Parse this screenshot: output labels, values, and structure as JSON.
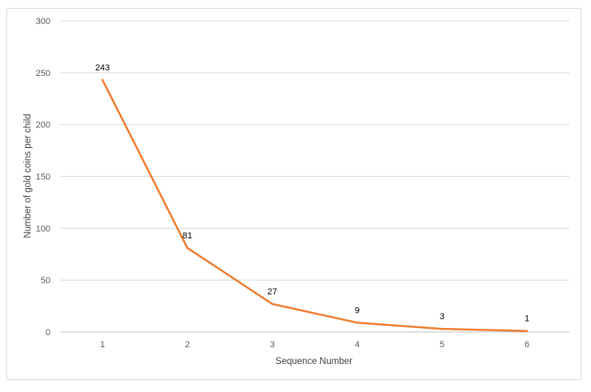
{
  "chart_data": {
    "type": "line",
    "categories": [
      "1",
      "2",
      "3",
      "4",
      "5",
      "6"
    ],
    "series": [
      {
        "values": [
          243,
          81,
          27,
          9,
          3,
          1
        ]
      }
    ],
    "data_labels": [
      "243",
      "81",
      "27",
      "9",
      "3",
      "1"
    ],
    "xlabel": "Sequence Number",
    "ylabel": "Number of gold coins per child",
    "ylim": [
      0,
      300
    ],
    "yticks": [
      0,
      50,
      100,
      150,
      200,
      250,
      300
    ],
    "ytick_labels": [
      "0",
      "50",
      "100",
      "150",
      "200",
      "250",
      "300"
    ],
    "grid": true,
    "legend": "none",
    "colors": {
      "line": "#ED7D31",
      "grid": "#d9d9d9",
      "axis": "#bfbfbf"
    }
  }
}
